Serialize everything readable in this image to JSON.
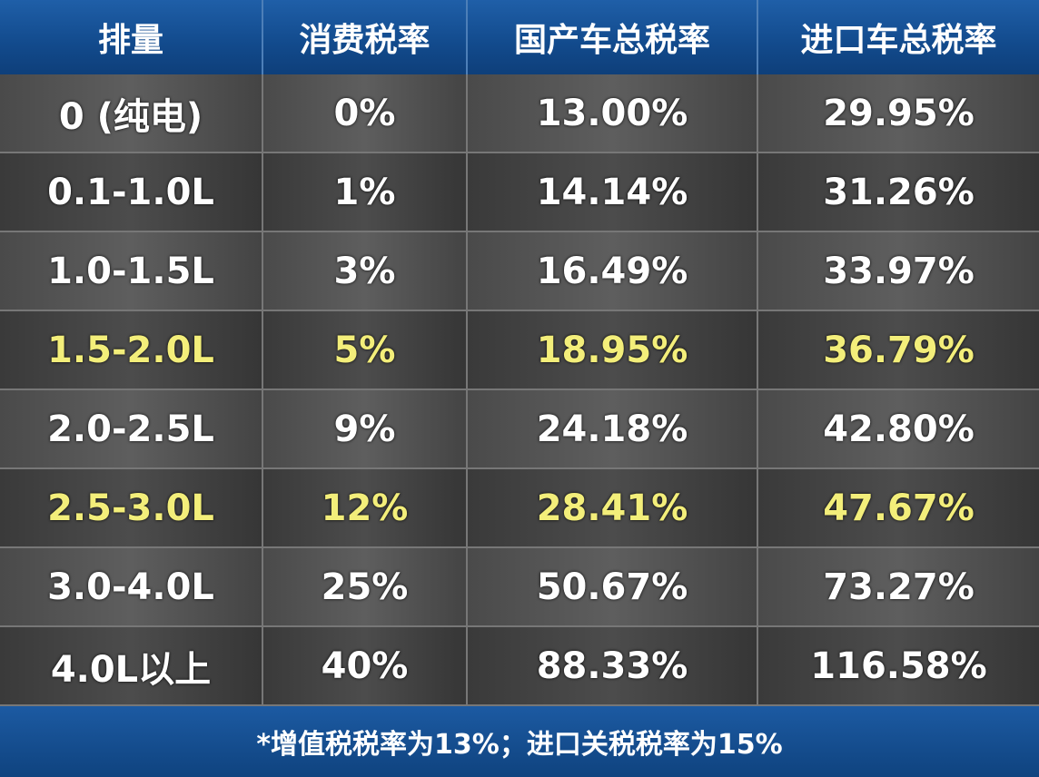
{
  "table": {
    "header": [
      "排量",
      "消费税率",
      "国产车总税率",
      "进口车总税率"
    ],
    "rows": [
      [
        "0 (纯电)",
        "0%",
        "13.00%",
        "29.95%"
      ],
      [
        "0.1-1.0L",
        "1%",
        "14.14%",
        "31.26%"
      ],
      [
        "1.0-1.5L",
        "3%",
        "16.49%",
        "33.97%"
      ],
      [
        "1.5-2.0L",
        "5%",
        "18.95%",
        "36.79%"
      ],
      [
        "2.0-2.5L",
        "9%",
        "24.18%",
        "42.80%"
      ],
      [
        "2.5-3.0L",
        "12%",
        "28.41%",
        "47.67%"
      ],
      [
        "3.0-4.0L",
        "25%",
        "50.67%",
        "73.27%"
      ],
      [
        "4.0L以上",
        "40%",
        "88.33%",
        "116.58%"
      ]
    ],
    "footnote": "*增值税税率为13%；进口关税税率为15%"
  }
}
